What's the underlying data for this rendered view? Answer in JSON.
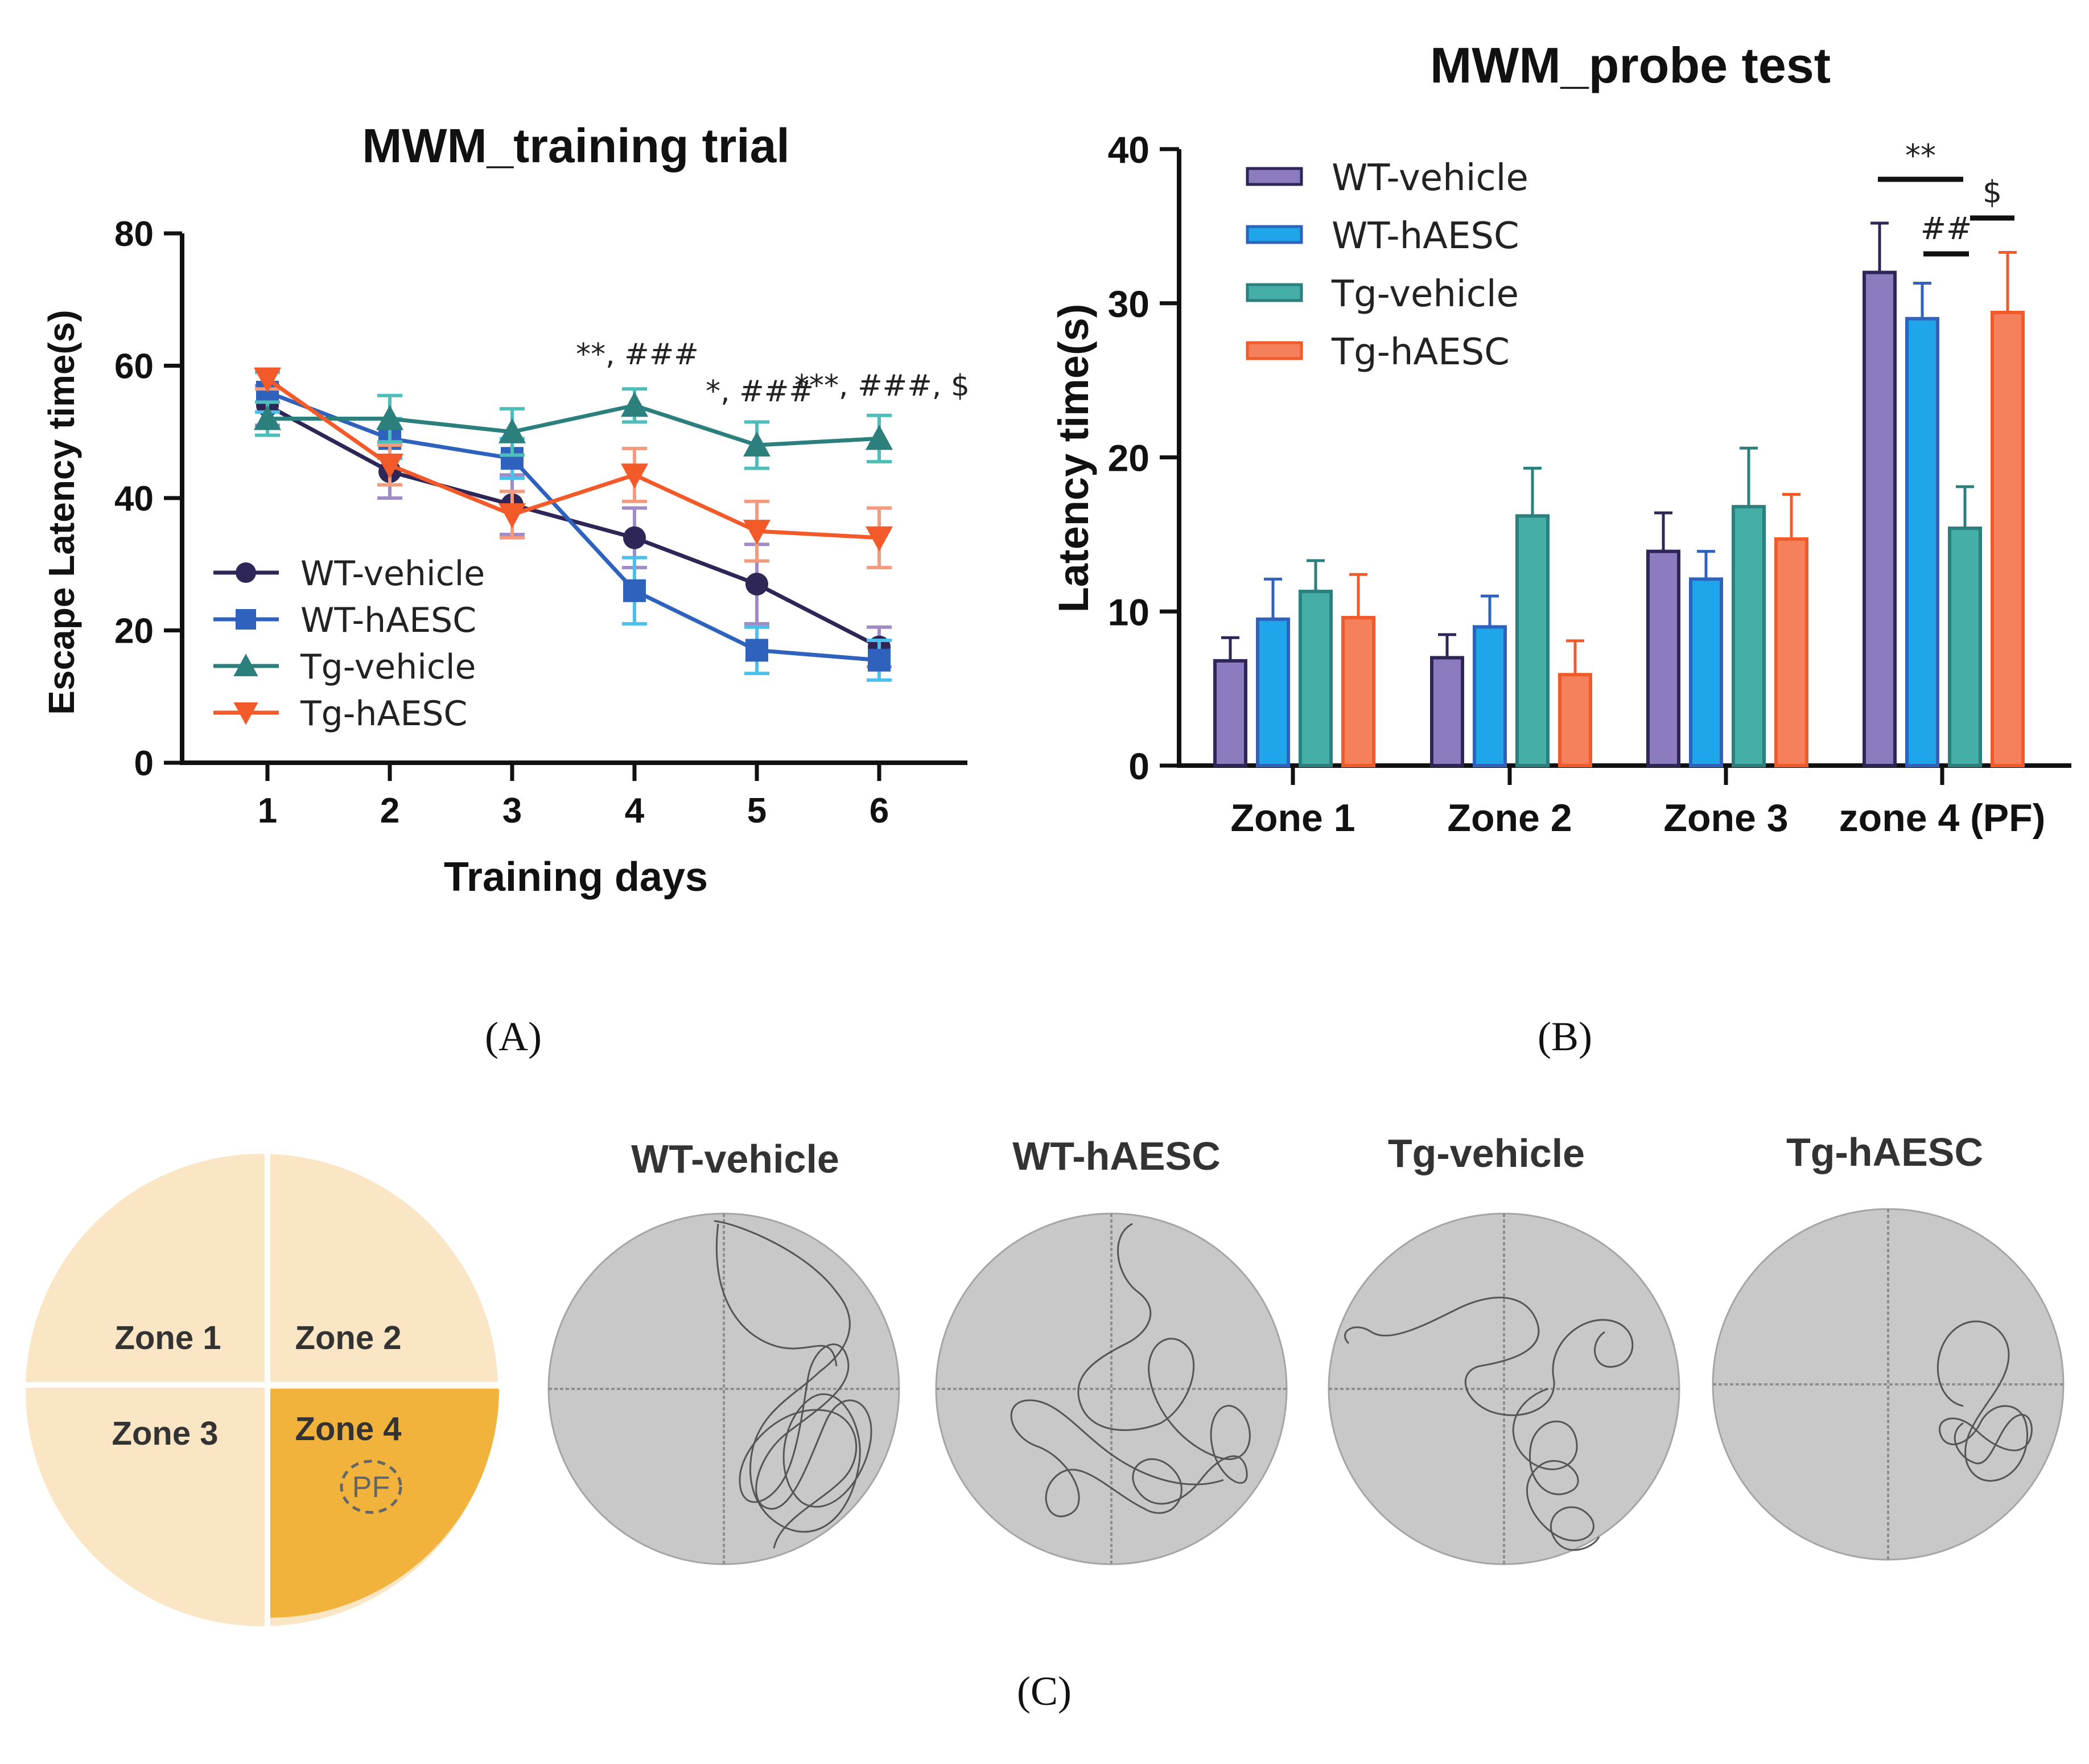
{
  "colors": {
    "wt_vehicle": "#2d2656",
    "wt_haesc": "#2f62bd",
    "tg_vehicle": "#2b7f7c",
    "tg_haesc": "#f25a2a",
    "err_wt_vehicle": "#9f8cc6",
    "err_wt_haesc": "#4cc0ea",
    "err_tg_vehicle": "#4fbdb9",
    "err_tg_haesc": "#f49a7e",
    "bar_wt_vehicle": "#8d7bbf",
    "bar_wt_haesc": "#1fa6ea",
    "bar_tg_vehicle": "#45aea6",
    "bar_tg_haesc": "#f4805c",
    "zone_light": "#fae6c4",
    "zone_pf": "#f2b33c",
    "maze_bg": "#c8c8c8"
  },
  "chart_data": [
    {
      "type": "line",
      "panel_label": "(A)",
      "title": "MWM_training trial",
      "xlabel": "Training days",
      "ylabel": "Escape Latency time(s)",
      "x": [
        1,
        2,
        3,
        4,
        5,
        6
      ],
      "xticks": [
        "1",
        "2",
        "3",
        "4",
        "5",
        "6"
      ],
      "ylim": [
        0,
        80
      ],
      "yticks": [
        "0",
        "20",
        "40",
        "60",
        "80"
      ],
      "legend_position": "lower-left",
      "series": [
        {
          "name": "WT-vehicle",
          "marker": "circle",
          "values": [
            54,
            44,
            39,
            34,
            27,
            17.5
          ],
          "errors": [
            3,
            4,
            4.5,
            4.5,
            6,
            3
          ]
        },
        {
          "name": "WT-hAESC",
          "marker": "square",
          "values": [
            56,
            49,
            46,
            26,
            17,
            15.5
          ],
          "errors": [
            3,
            3,
            3,
            5,
            3.5,
            3
          ]
        },
        {
          "name": "Tg-vehicle",
          "marker": "triangle-up",
          "values": [
            52,
            52,
            50,
            54,
            48,
            49
          ],
          "errors": [
            2.5,
            3.5,
            3.5,
            2.5,
            3.5,
            3.5
          ]
        },
        {
          "name": "Tg-hAESC",
          "marker": "triangle-down",
          "values": [
            58,
            45,
            37.5,
            43.5,
            35,
            34
          ],
          "errors": [
            1.5,
            3,
            3.5,
            4,
            4.5,
            4.5
          ]
        }
      ],
      "annotations": [
        {
          "x": 4,
          "text": "**, ###"
        },
        {
          "x": 5,
          "text": "*, ###"
        },
        {
          "x": 6,
          "text": "***, ###, $"
        }
      ]
    },
    {
      "type": "bar",
      "panel_label": "(B)",
      "title": "MWM_probe test",
      "xlabel": "",
      "ylabel": "Latency time(s)",
      "categories": [
        "Zone 1",
        "Zone 2",
        "Zone 3",
        "zone 4 (PF)"
      ],
      "ylim": [
        0,
        40
      ],
      "yticks": [
        "0",
        "10",
        "20",
        "30",
        "40"
      ],
      "legend_position": "top-left",
      "series": [
        {
          "name": "WT-vehicle",
          "values": [
            6.8,
            7.0,
            13.9,
            32.0
          ],
          "errors": [
            1.5,
            1.5,
            2.5,
            3.2
          ]
        },
        {
          "name": "WT-hAESC",
          "values": [
            9.5,
            9.0,
            12.1,
            29.0
          ],
          "errors": [
            2.6,
            2.0,
            1.8,
            2.3
          ]
        },
        {
          "name": "Tg-vehicle",
          "values": [
            11.3,
            16.2,
            16.8,
            15.4
          ],
          "errors": [
            2.0,
            3.1,
            3.8,
            2.7
          ]
        },
        {
          "name": "Tg-hAESC",
          "values": [
            9.6,
            5.9,
            14.7,
            29.4
          ],
          "errors": [
            2.8,
            2.2,
            2.9,
            3.9
          ]
        }
      ],
      "significance": [
        {
          "text": "**",
          "from_series": 0,
          "to_series": 2,
          "category": 3
        },
        {
          "text": "##",
          "from_series": 1,
          "to_series": 2,
          "category": 3
        },
        {
          "text": "$",
          "from_series": 2,
          "to_series": 3,
          "category": 3
        }
      ]
    }
  ],
  "panel_c": {
    "label": "(C)",
    "zones": [
      "Zone 1",
      "Zone 2",
      "Zone 3",
      "Zone 4"
    ],
    "pf_label": "PF",
    "groups": [
      "WT-vehicle",
      "WT-hAESC",
      "Tg-vehicle",
      "Tg-hAESC"
    ]
  }
}
